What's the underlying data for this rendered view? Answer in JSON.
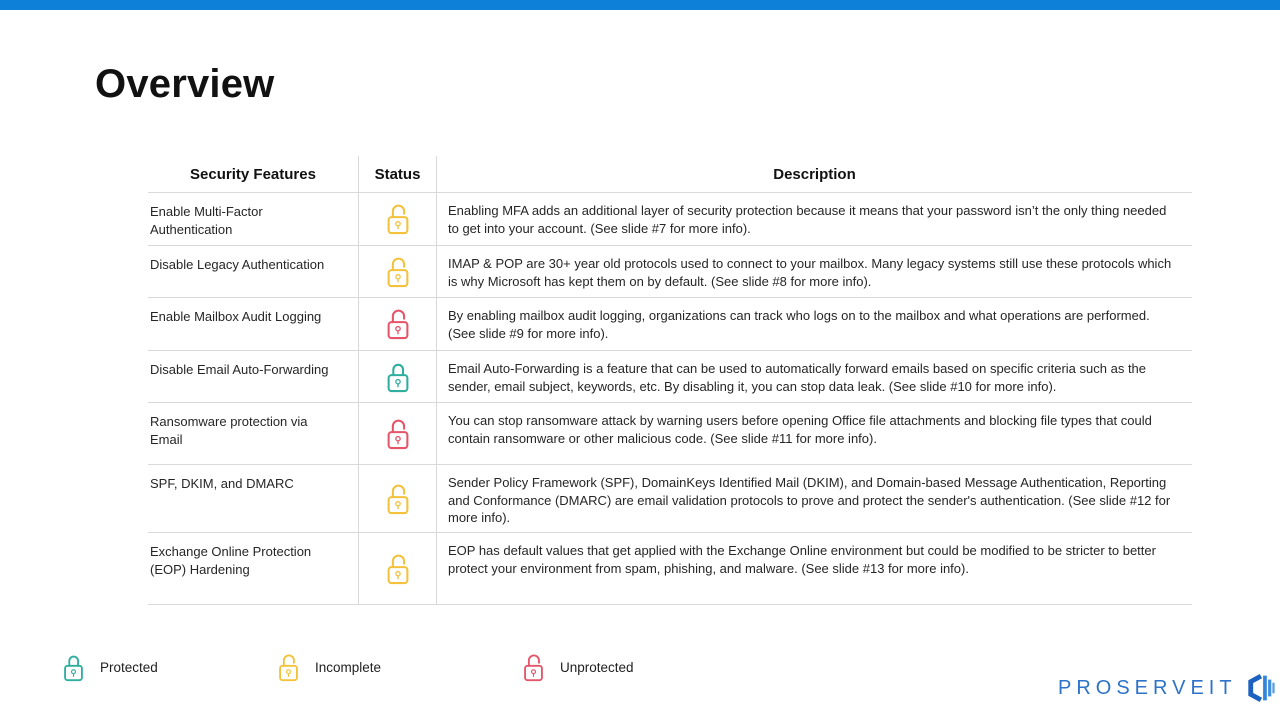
{
  "slide": {
    "title": "Overview",
    "accent_bar_color": "#0e80d7",
    "background_color": "#ffffff"
  },
  "table": {
    "headers": [
      "Security Features",
      "Status",
      "Description"
    ],
    "rows": [
      {
        "feature": "Enable Multi-Factor Authentication",
        "status": "incomplete",
        "description": "Enabling MFA adds an additional layer of security protection because it means that your password isn’t the only thing needed to get into your account. (See slide #7 for more info)."
      },
      {
        "feature": "Disable Legacy Authentication",
        "status": "incomplete",
        "description": "IMAP & POP are 30+ year old protocols used to connect to your mailbox. Many legacy systems still use these protocols which is why Microsoft has kept them on by default. (See slide #8 for more info)."
      },
      {
        "feature": "Enable Mailbox Audit Logging",
        "status": "unprotected",
        "description": "By enabling mailbox audit logging, organizations can track who logs on to the mailbox and what operations are performed. (See slide #9 for more info)."
      },
      {
        "feature": "Disable Email Auto-Forwarding",
        "status": "protected",
        "description": "Email Auto-Forwarding is a feature that can be used to automatically forward emails based on specific criteria such as the sender, email subject, keywords, etc. By disabling it, you can stop data leak. (See slide #10 for more info)."
      },
      {
        "feature": "Ransomware protection via Email",
        "status": "unprotected",
        "description": "You can stop ransomware attack by warning users before opening Office file attachments and blocking file types that could contain ransomware or other malicious code. (See slide #11 for more info)."
      },
      {
        "feature": "SPF, DKIM, and DMARC",
        "status": "incomplete",
        "description": "Sender Policy Framework (SPF), DomainKeys Identified Mail (DKIM), and Domain-based Message Authentication, Reporting and Conformance (DMARC) are email validation protocols to prove and protect the sender's authentication. (See slide #12 for more info)."
      },
      {
        "feature": "Exchange Online Protection (EOP) Hardening",
        "status": "incomplete",
        "description": "EOP has default values that get applied with the Exchange Online environment but could be modified to be stricter to better protect your environment from spam, phishing, and malware. (See slide #13 for more info)."
      }
    ]
  },
  "status_colors": {
    "protected": "#2fae9f",
    "incomplete": "#f2c23c",
    "unprotected": "#e4556a"
  },
  "legend": {
    "items": [
      {
        "label": "Protected",
        "status": "protected"
      },
      {
        "label": "Incomplete",
        "status": "incomplete"
      },
      {
        "label": "Unprotected",
        "status": "unprotected"
      }
    ]
  },
  "logo": {
    "text": "PROSERVEIT",
    "text_color": "#2e73c9",
    "icon_colors": [
      "#1c60c1",
      "#2f86dd",
      "#3f8fdf",
      "#55a0e6"
    ]
  }
}
